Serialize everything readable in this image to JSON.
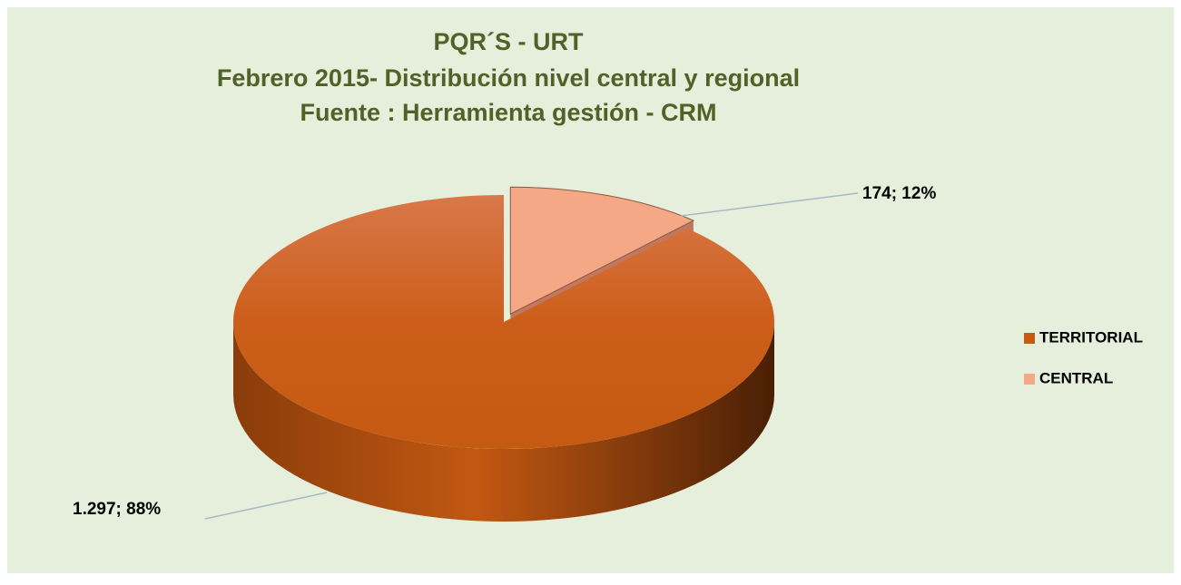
{
  "chart_data": {
    "type": "pie",
    "title": [
      "PQR´S - URT",
      "Febrero 2015-  Distribución nivel central y regional",
      "Fuente : Herramienta gestión - CRM"
    ],
    "categories": [
      "TERRITORIAL",
      "CENTRAL"
    ],
    "values": [
      1297,
      174
    ],
    "value_labels": [
      "1.297; 88%",
      "174; 12%"
    ],
    "colors": [
      "#c55a11",
      "#f4a886"
    ],
    "legend": "right"
  }
}
